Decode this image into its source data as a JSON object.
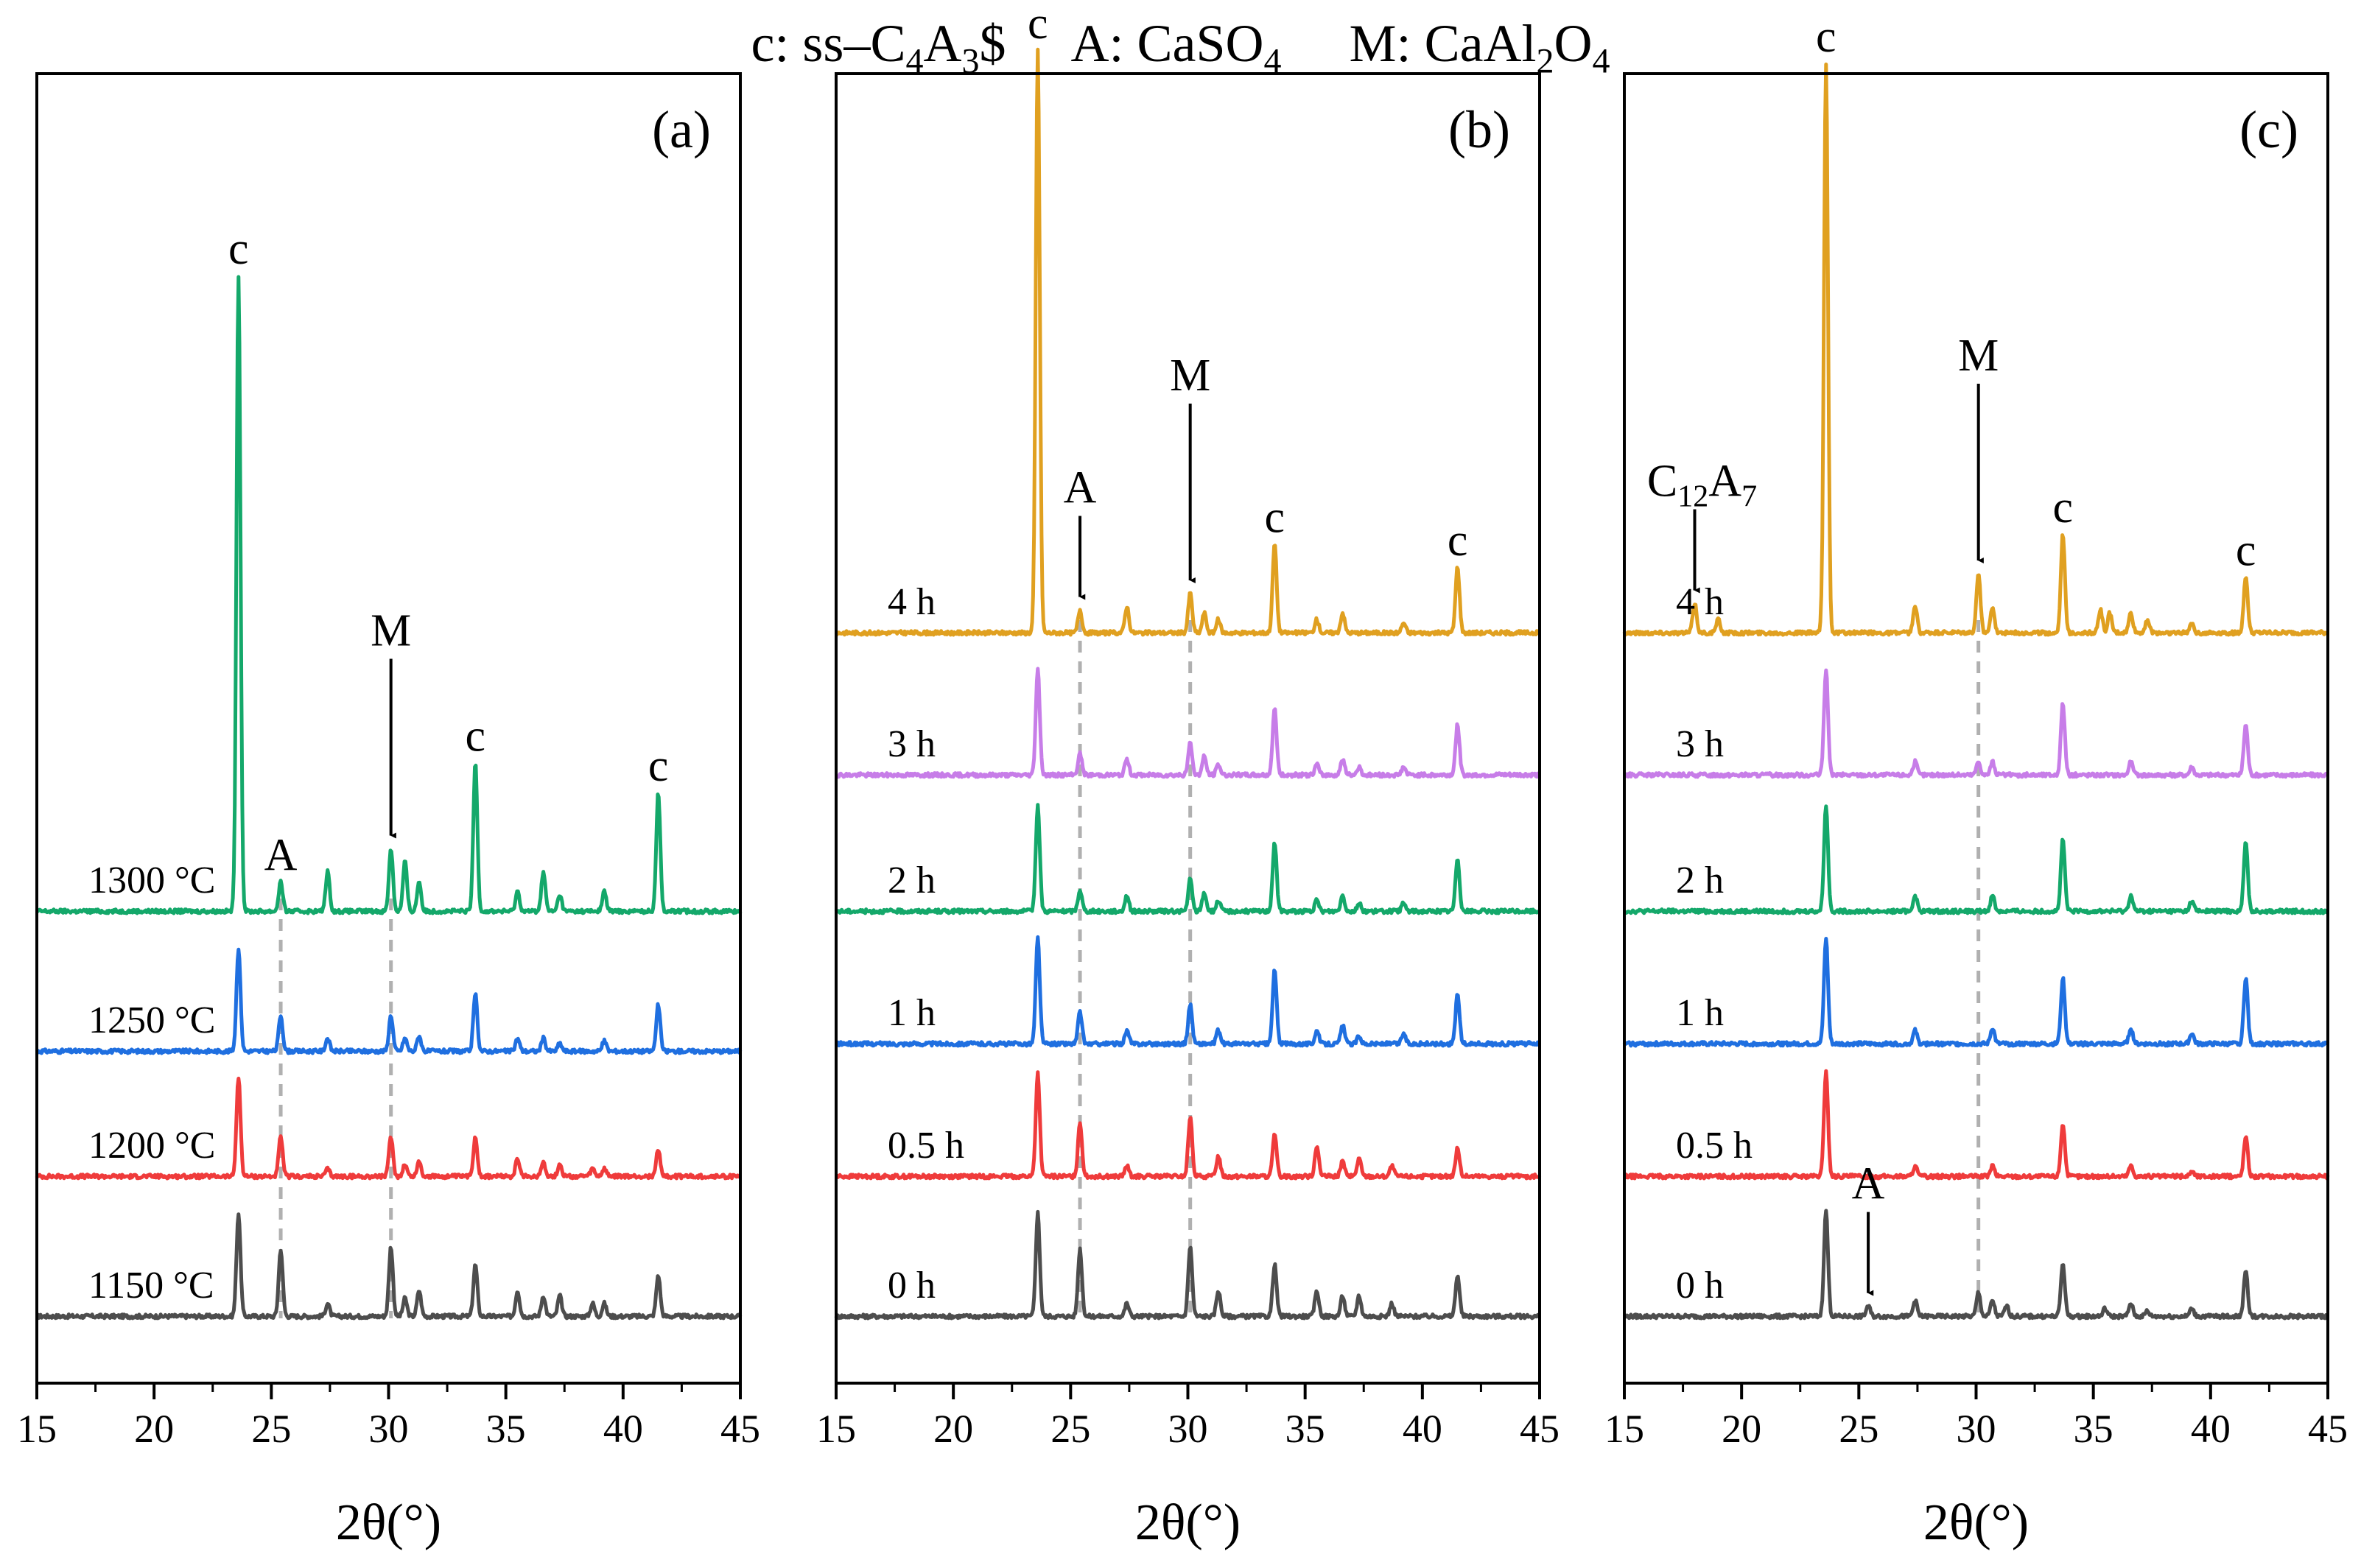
{
  "legend": {
    "c_key": "c:",
    "c_text": "ss–C",
    "c_sub1": "4",
    "c_mid": "A",
    "c_sub2": "3",
    "c_tail": "$",
    "a_key": "A:",
    "a_text": "CaSO",
    "a_sub": "4",
    "m_key": "M:",
    "m_text": "CaAl",
    "m_sub1": "2",
    "m_mid": "O",
    "m_sub2": "4"
  },
  "colors": {
    "s0": "#4d4d4d",
    "s1": "#ef3b3b",
    "s2": "#1f6fe0",
    "s3": "#14a86a",
    "s4": "#c77de8",
    "s5": "#e0a020",
    "guide": "#b0b0b0",
    "axis": "#000000"
  },
  "chart_data": [
    {
      "type": "line",
      "panel": "(a)",
      "xlabel": "2θ(°)",
      "xlim": [
        15,
        45
      ],
      "xticks": [
        15,
        20,
        25,
        30,
        35,
        40,
        45
      ],
      "guides": [
        25.4,
        30.1
      ],
      "series": [
        {
          "name": "1150 °C",
          "color_key": "s0",
          "scale": 0.78,
          "peaks": [
            [
              23.6,
              200
            ],
            [
              25.4,
              130
            ],
            [
              27.4,
              25
            ],
            [
              30.1,
              135
            ],
            [
              30.7,
              35
            ],
            [
              31.3,
              50
            ],
            [
              33.7,
              100
            ],
            [
              35.5,
              50
            ],
            [
              36.6,
              40
            ],
            [
              37.3,
              40
            ],
            [
              38.7,
              25
            ],
            [
              39.2,
              25
            ],
            [
              41.5,
              80
            ]
          ]
        },
        {
          "name": "1200 °C",
          "color_key": "s1",
          "scale": 0.75,
          "peaks": [
            [
              23.6,
              200
            ],
            [
              25.4,
              80
            ],
            [
              27.4,
              15
            ],
            [
              30.1,
              80
            ],
            [
              30.7,
              25
            ],
            [
              31.3,
              30
            ],
            [
              33.7,
              80
            ],
            [
              35.5,
              35
            ],
            [
              36.6,
              30
            ],
            [
              37.3,
              25
            ],
            [
              38.7,
              15
            ],
            [
              39.2,
              15
            ],
            [
              41.5,
              55
            ]
          ]
        },
        {
          "name": "1250 °C",
          "color_key": "s2",
          "scale": 0.78,
          "peaks": [
            [
              23.6,
              200
            ],
            [
              25.4,
              70
            ],
            [
              27.4,
              25
            ],
            [
              30.1,
              70
            ],
            [
              30.7,
              25
            ],
            [
              31.3,
              30
            ],
            [
              33.7,
              110
            ],
            [
              35.5,
              25
            ],
            [
              36.6,
              25
            ],
            [
              37.3,
              15
            ],
            [
              39.2,
              20
            ],
            [
              41.5,
              90
            ]
          ]
        },
        {
          "name": "1300 °C",
          "color_key": "s3",
          "scale": 1.0,
          "peaks": [
            [
              23.6,
              960
            ],
            [
              25.4,
              45
            ],
            [
              27.4,
              60
            ],
            [
              30.1,
              95
            ],
            [
              30.7,
              75
            ],
            [
              31.3,
              45
            ],
            [
              33.7,
              225
            ],
            [
              35.5,
              30
            ],
            [
              36.6,
              60
            ],
            [
              37.3,
              25
            ],
            [
              39.2,
              30
            ],
            [
              41.5,
              180
            ]
          ]
        }
      ],
      "annotations": [
        {
          "text": "c",
          "x": 23.6,
          "arrow": false
        },
        {
          "text": "A",
          "x": 25.4,
          "arrow": false
        },
        {
          "text": "M",
          "x": 30.1,
          "arrow": true
        },
        {
          "text": "c",
          "x": 33.7,
          "arrow": false
        },
        {
          "text": "c",
          "x": 41.5,
          "arrow": false
        }
      ]
    },
    {
      "type": "line",
      "panel": "(b)",
      "xlabel": "2θ(°)",
      "xlim": [
        15,
        45
      ],
      "xticks": [
        15,
        20,
        25,
        30,
        35,
        40,
        45
      ],
      "guides": [
        25.4,
        30.1
      ],
      "series": [
        {
          "name": "0 h",
          "color_key": "s0",
          "scale": 0.78,
          "peaks": [
            [
              23.6,
              200
            ],
            [
              25.4,
              130
            ],
            [
              27.4,
              25
            ],
            [
              30.1,
              135
            ],
            [
              31.3,
              50
            ],
            [
              33.7,
              100
            ],
            [
              35.5,
              50
            ],
            [
              36.6,
              40
            ],
            [
              37.3,
              40
            ],
            [
              38.7,
              25
            ],
            [
              41.5,
              80
            ]
          ]
        },
        {
          "name": "0.5 h",
          "color_key": "s1",
          "scale": 0.78,
          "peaks": [
            [
              23.6,
              200
            ],
            [
              25.4,
              105
            ],
            [
              27.4,
              20
            ],
            [
              30.1,
              115
            ],
            [
              31.3,
              40
            ],
            [
              33.7,
              80
            ],
            [
              35.5,
              60
            ],
            [
              36.6,
              30
            ],
            [
              37.3,
              35
            ],
            [
              38.7,
              20
            ],
            [
              41.5,
              55
            ]
          ]
        },
        {
          "name": "1 h",
          "color_key": "s2",
          "scale": 0.8,
          "peaks": [
            [
              23.6,
              200
            ],
            [
              25.4,
              60
            ],
            [
              27.4,
              25
            ],
            [
              30.1,
              75
            ],
            [
              31.3,
              25
            ],
            [
              33.7,
              140
            ],
            [
              35.5,
              25
            ],
            [
              36.6,
              35
            ],
            [
              37.3,
              15
            ],
            [
              39.2,
              20
            ],
            [
              41.5,
              95
            ]
          ]
        },
        {
          "name": "2 h",
          "color_key": "s3",
          "scale": 0.8,
          "peaks": [
            [
              23.6,
              200
            ],
            [
              25.4,
              40
            ],
            [
              27.4,
              30
            ],
            [
              30.1,
              60
            ],
            [
              30.7,
              35
            ],
            [
              31.3,
              20
            ],
            [
              33.7,
              130
            ],
            [
              35.5,
              20
            ],
            [
              36.6,
              30
            ],
            [
              37.3,
              15
            ],
            [
              39.2,
              15
            ],
            [
              41.5,
              100
            ]
          ]
        },
        {
          "name": "3 h",
          "color_key": "s4",
          "scale": 0.8,
          "peaks": [
            [
              23.6,
              200
            ],
            [
              25.4,
              40
            ],
            [
              27.4,
              30
            ],
            [
              30.1,
              60
            ],
            [
              30.7,
              35
            ],
            [
              31.3,
              20
            ],
            [
              33.7,
              125
            ],
            [
              35.5,
              20
            ],
            [
              36.6,
              30
            ],
            [
              37.3,
              15
            ],
            [
              39.2,
              15
            ],
            [
              41.5,
              95
            ]
          ]
        },
        {
          "name": "4 h",
          "color_key": "s5",
          "scale": 1.0,
          "peaks": [
            [
              23.6,
              880
            ],
            [
              25.4,
              35
            ],
            [
              27.4,
              40
            ],
            [
              30.1,
              60
            ],
            [
              30.7,
              30
            ],
            [
              31.3,
              20
            ],
            [
              33.7,
              135
            ],
            [
              35.5,
              20
            ],
            [
              36.6,
              30
            ],
            [
              39.2,
              15
            ],
            [
              41.5,
              100
            ]
          ]
        }
      ],
      "annotations": [
        {
          "text": "c",
          "x": 23.6,
          "arrow": false
        },
        {
          "text": "A",
          "x": 25.4,
          "arrow": true
        },
        {
          "text": "M",
          "x": 30.1,
          "arrow": true
        },
        {
          "text": "c",
          "x": 33.7,
          "arrow": false
        },
        {
          "text": "c",
          "x": 41.5,
          "arrow": false
        }
      ]
    },
    {
      "type": "line",
      "panel": "(c)",
      "xlabel": "2θ(°)",
      "xlim": [
        15,
        45
      ],
      "xticks": [
        15,
        20,
        25,
        30,
        35,
        40,
        45
      ],
      "guides": [
        30.1
      ],
      "series": [
        {
          "name": "0 h",
          "color_key": "s0",
          "scale": 0.8,
          "peaks": [
            [
              23.6,
              200
            ],
            [
              25.4,
              20
            ],
            [
              27.4,
              30
            ],
            [
              30.1,
              45
            ],
            [
              30.7,
              30
            ],
            [
              31.3,
              20
            ],
            [
              33.7,
              100
            ],
            [
              35.5,
              15
            ],
            [
              36.6,
              25
            ],
            [
              37.3,
              10
            ],
            [
              39.2,
              15
            ],
            [
              41.5,
              85
            ]
          ]
        },
        {
          "name": "0.5 h",
          "color_key": "s1",
          "scale": 0.8,
          "peaks": [
            [
              23.6,
              200
            ],
            [
              27.4,
              20
            ],
            [
              30.7,
              20
            ],
            [
              33.7,
              100
            ],
            [
              36.6,
              20
            ],
            [
              39.2,
              10
            ],
            [
              41.5,
              75
            ]
          ]
        },
        {
          "name": "1 h",
          "color_key": "s2",
          "scale": 0.8,
          "peaks": [
            [
              23.6,
              200
            ],
            [
              27.4,
              25
            ],
            [
              30.7,
              30
            ],
            [
              33.7,
              125
            ],
            [
              36.6,
              30
            ],
            [
              39.2,
              20
            ],
            [
              41.5,
              125
            ]
          ]
        },
        {
          "name": "2 h",
          "color_key": "s3",
          "scale": 0.8,
          "peaks": [
            [
              23.6,
              200
            ],
            [
              27.4,
              30
            ],
            [
              30.7,
              30
            ],
            [
              33.7,
              135
            ],
            [
              36.6,
              30
            ],
            [
              39.2,
              20
            ],
            [
              41.5,
              130
            ]
          ]
        },
        {
          "name": "3 h",
          "color_key": "s4",
          "scale": 0.8,
          "peaks": [
            [
              23.6,
              200
            ],
            [
              27.4,
              25
            ],
            [
              30.1,
              25
            ],
            [
              30.7,
              25
            ],
            [
              33.7,
              135
            ],
            [
              36.6,
              25
            ],
            [
              39.2,
              15
            ],
            [
              41.5,
              95
            ]
          ]
        },
        {
          "name": "4 h",
          "color_key": "s5",
          "scale": 1.0,
          "peaks": [
            [
              18.0,
              45
            ],
            [
              19.0,
              20
            ],
            [
              23.6,
              860
            ],
            [
              27.4,
              40
            ],
            [
              30.1,
              90
            ],
            [
              30.7,
              40
            ],
            [
              33.7,
              150
            ],
            [
              35.3,
              35
            ],
            [
              35.7,
              30
            ],
            [
              36.6,
              30
            ],
            [
              37.3,
              20
            ],
            [
              39.2,
              15
            ],
            [
              41.5,
              85
            ]
          ]
        }
      ],
      "annotations": [
        {
          "text": "C",
          "sub": "12",
          "tail": "A",
          "tailsub": "7",
          "x": 18.0,
          "arrow": true
        },
        {
          "text": "c",
          "x": 23.6,
          "arrow": false
        },
        {
          "text": "M",
          "x": 30.1,
          "arrow": true
        },
        {
          "text": "c",
          "x": 33.7,
          "arrow": false
        },
        {
          "text": "c",
          "x": 41.5,
          "arrow": false
        },
        {
          "text": "A",
          "x": 25.4,
          "arrow": true,
          "target": "0 h"
        }
      ]
    }
  ]
}
